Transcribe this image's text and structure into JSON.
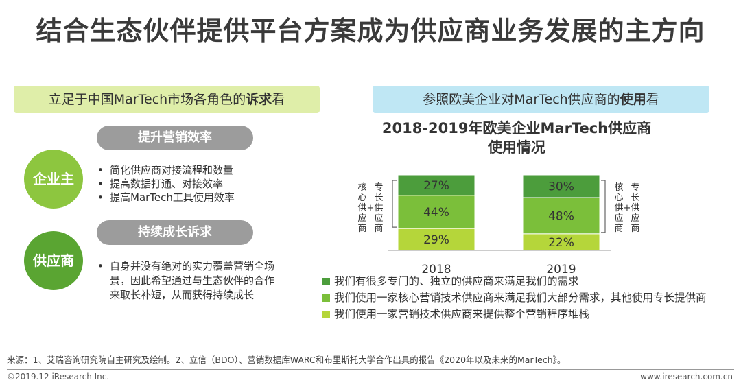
{
  "title": "结合生态伙伴提供平台方案成为供应商业务发展的主方向",
  "left_banner": {
    "prefix": "立足于中国MarTech市场各角色的",
    "bold": "诉求",
    "suffix": "看"
  },
  "right_banner": {
    "prefix": "参照欧美企业对MarTech供应商的",
    "bold": "使用",
    "suffix": "看"
  },
  "enterprise": {
    "circle_label": "企业主",
    "pill_label": "提升营销效率",
    "bullets": [
      "简化供应商对接流程和数量",
      "提高数据打通、对接效率",
      "提高MarTech工具使用效率"
    ]
  },
  "supplier": {
    "circle_label": "供应商",
    "pill_label": "持续成长诉求",
    "paragraph": "自身并没有绝对的实力覆盖营销全场景，因此希望通过与生态伙伴的合作来取长补短，从而获得持续成长"
  },
  "chart_data": {
    "type": "bar",
    "stacked": true,
    "title": [
      "2018-2019年欧美企业MarTech供应商",
      "使用情况"
    ],
    "categories": [
      "2018",
      "2019"
    ],
    "series": [
      {
        "name": "我们使用一家营销技术供应商来提供整个营销程序堆栈",
        "values": [
          29,
          22
        ],
        "color": "#b5d63a",
        "labels": [
          "29%",
          "22%"
        ]
      },
      {
        "name": "我们使用一家核心营销技术供应商来满足我们大部分需求，其他使用专长提供商",
        "values": [
          44,
          48
        ],
        "color": "#7bbf3a",
        "labels": [
          "44%",
          "48%"
        ]
      },
      {
        "name": "我们有很多专门的、独立的供应商来满足我们的需求",
        "values": [
          27,
          30
        ],
        "color": "#4c9d3c",
        "labels": [
          "27%",
          "30%"
        ]
      }
    ],
    "ylim": [
      0,
      100
    ],
    "bracket_annotations": {
      "left": {
        "col1": [
          "核",
          "心",
          "供",
          "应",
          "商"
        ],
        "col2": [
          "专",
          "长",
          "供",
          "应",
          "商"
        ],
        "joiner": "+"
      },
      "right": {
        "col1": [
          "核",
          "心",
          "供",
          "应",
          "商"
        ],
        "col2": [
          "专",
          "长",
          "供",
          "应",
          "商"
        ],
        "joiner": "+"
      }
    }
  },
  "legend": [
    {
      "label": "我们有很多专门的、独立的供应商来满足我们的需求",
      "color": "#4c9d3c"
    },
    {
      "label": "我们使用一家核心营销技术供应商来满足我们大部分需求，其他使用专长提供商",
      "color": "#7bbf3a"
    },
    {
      "label": "我们使用一家营销技术供应商来提供整个营销程序堆栈",
      "color": "#b5d63a"
    }
  ],
  "source": "来源：1、艾瑞咨询研究院自主研究及绘制。2、立信（BDO）、营销数据库WARC和布里斯托大学合作出具的报告《2020年以及未来的MarTech》。",
  "footer": {
    "copyright": "©2019.12 iResearch Inc.",
    "website": "www.iresearch.com.cn"
  }
}
